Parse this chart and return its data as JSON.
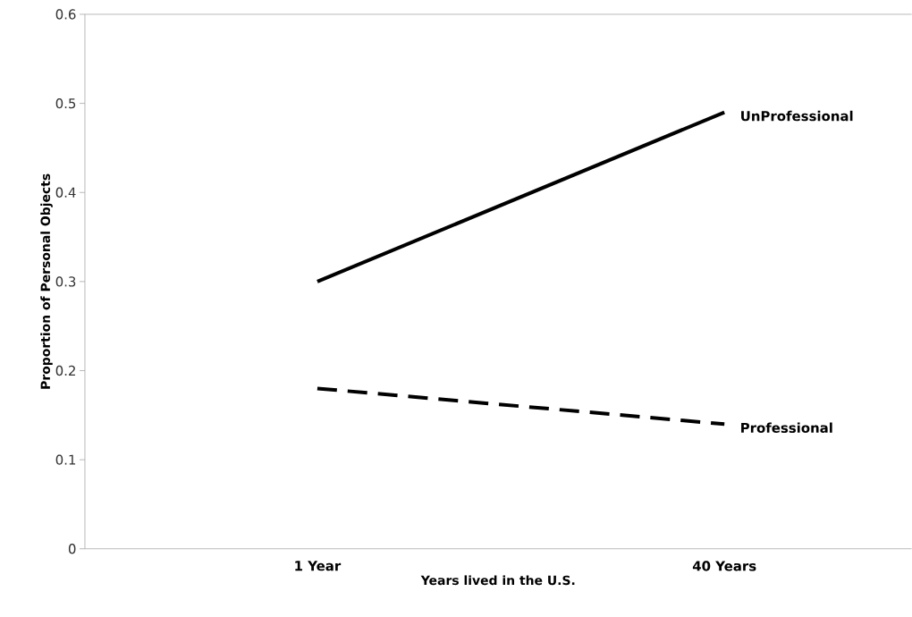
{
  "chart_data": {
    "type": "line",
    "xlabel": "Years lived in the U.S.",
    "ylabel": "Proportion of Personal Objects",
    "categories": [
      "1 Year",
      "40 Years"
    ],
    "series": [
      {
        "name": "UnProfessional",
        "color": "#000000",
        "line_style": "solid",
        "values": [
          0.3,
          0.49
        ]
      },
      {
        "name": "Professional",
        "color": "#000000",
        "line_style": "dashed",
        "values": [
          0.18,
          0.14
        ]
      }
    ],
    "ylim": [
      0,
      0.6
    ],
    "yticks": [
      0,
      0.1,
      0.2,
      0.3,
      0.4,
      0.5,
      0.6
    ],
    "marker": "none"
  }
}
